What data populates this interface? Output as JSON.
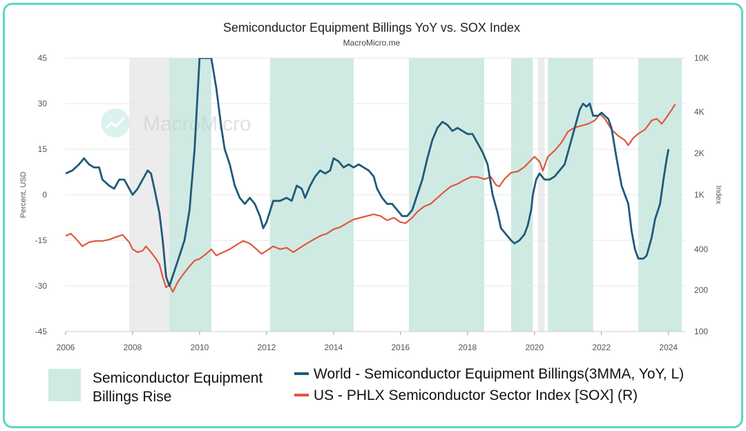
{
  "colors": {
    "rise_band": "#cfeae3",
    "gray_band": "#ececec",
    "world": "#1f5a7a",
    "us": "#e0563c",
    "frame": "#5ed6c2",
    "grid": "#e6e6e6"
  },
  "watermark": {
    "text": "MacroMicro",
    "icon": "chart-logo-icon"
  },
  "chart_data": {
    "type": "line",
    "title": "Semiconductor Equipment Billings YoY vs. SOX Index",
    "subtitle": "MacroMicro.me",
    "ylabel_left": "Percent, USD",
    "ylabel_right": "Index",
    "x_range": [
      2006.0,
      2024.5
    ],
    "y_left_range": [
      -45,
      45
    ],
    "y_right_range": [
      100,
      10000
    ],
    "y_right_scale": "log",
    "x_ticks": [
      "2006",
      "2008",
      "2010",
      "2012",
      "2014",
      "2016",
      "2018",
      "2020",
      "2022",
      "2024"
    ],
    "y_left_ticks": [
      "45",
      "30",
      "15",
      "0",
      "-15",
      "-30",
      "-45"
    ],
    "y_right_ticks": [
      "10K",
      "4K",
      "2K",
      "1K",
      "400",
      "200",
      "100"
    ],
    "rise_periods": [
      [
        2009.1,
        2010.35
      ],
      [
        2012.1,
        2014.6
      ],
      [
        2016.25,
        2018.5
      ],
      [
        2019.3,
        2019.95
      ],
      [
        2020.4,
        2021.75
      ],
      [
        2023.1,
        2024.4
      ]
    ],
    "gray_periods": [
      [
        2007.9,
        2009.3
      ],
      [
        2020.1,
        2020.3
      ]
    ],
    "legend": {
      "band_label": "Semiconductor Equipment Billings Rise",
      "series_labels": [
        "World - Semiconductor Equipment Billings(3MMA, YoY, L)",
        "US - PHLX Semiconductor Sector Index [SOX] (R)"
      ]
    },
    "series": [
      {
        "name": "World - Semiconductor Equipment Billings(3MMA, YoY, L)",
        "axis": "left",
        "points": [
          [
            2006.0,
            7
          ],
          [
            2006.2,
            8
          ],
          [
            2006.4,
            10
          ],
          [
            2006.55,
            12
          ],
          [
            2006.7,
            10
          ],
          [
            2006.85,
            9
          ],
          [
            2007.0,
            9
          ],
          [
            2007.1,
            5
          ],
          [
            2007.3,
            3
          ],
          [
            2007.45,
            2
          ],
          [
            2007.6,
            5
          ],
          [
            2007.75,
            5
          ],
          [
            2007.9,
            2
          ],
          [
            2008.0,
            0
          ],
          [
            2008.15,
            2
          ],
          [
            2008.3,
            5
          ],
          [
            2008.45,
            8
          ],
          [
            2008.55,
            7
          ],
          [
            2008.65,
            2
          ],
          [
            2008.8,
            -6
          ],
          [
            2008.9,
            -15
          ],
          [
            2009.0,
            -27
          ],
          [
            2009.1,
            -30
          ],
          [
            2009.25,
            -25
          ],
          [
            2009.4,
            -20
          ],
          [
            2009.55,
            -15
          ],
          [
            2009.7,
            -5
          ],
          [
            2009.85,
            15
          ],
          [
            2009.95,
            35
          ],
          [
            2010.0,
            45
          ],
          [
            2010.35,
            45
          ],
          [
            2010.5,
            35
          ],
          [
            2010.65,
            22
          ],
          [
            2010.75,
            15
          ],
          [
            2010.9,
            10
          ],
          [
            2011.05,
            3
          ],
          [
            2011.2,
            -1
          ],
          [
            2011.35,
            -3
          ],
          [
            2011.5,
            -1
          ],
          [
            2011.65,
            -3
          ],
          [
            2011.8,
            -7
          ],
          [
            2011.9,
            -11
          ],
          [
            2012.0,
            -9
          ],
          [
            2012.2,
            -2
          ],
          [
            2012.4,
            -2
          ],
          [
            2012.6,
            -1
          ],
          [
            2012.75,
            -2
          ],
          [
            2012.9,
            3
          ],
          [
            2013.05,
            2
          ],
          [
            2013.15,
            -1
          ],
          [
            2013.3,
            3
          ],
          [
            2013.45,
            6
          ],
          [
            2013.6,
            8
          ],
          [
            2013.75,
            7
          ],
          [
            2013.9,
            8
          ],
          [
            2014.0,
            12
          ],
          [
            2014.15,
            11
          ],
          [
            2014.3,
            9
          ],
          [
            2014.45,
            10
          ],
          [
            2014.6,
            9
          ],
          [
            2014.75,
            10
          ],
          [
            2014.9,
            9
          ],
          [
            2015.05,
            8
          ],
          [
            2015.2,
            6
          ],
          [
            2015.3,
            2
          ],
          [
            2015.45,
            -1
          ],
          [
            2015.6,
            -3
          ],
          [
            2015.75,
            -3
          ],
          [
            2015.9,
            -5
          ],
          [
            2016.05,
            -7
          ],
          [
            2016.2,
            -7
          ],
          [
            2016.35,
            -5
          ],
          [
            2016.5,
            0
          ],
          [
            2016.65,
            5
          ],
          [
            2016.8,
            12
          ],
          [
            2016.95,
            18
          ],
          [
            2017.1,
            22
          ],
          [
            2017.25,
            24
          ],
          [
            2017.4,
            23
          ],
          [
            2017.55,
            21
          ],
          [
            2017.7,
            22
          ],
          [
            2017.85,
            21
          ],
          [
            2018.0,
            20
          ],
          [
            2018.15,
            20
          ],
          [
            2018.3,
            17
          ],
          [
            2018.45,
            14
          ],
          [
            2018.6,
            10
          ],
          [
            2018.75,
            0
          ],
          [
            2018.9,
            -6
          ],
          [
            2019.0,
            -11
          ],
          [
            2019.15,
            -13
          ],
          [
            2019.3,
            -15
          ],
          [
            2019.4,
            -16
          ],
          [
            2019.55,
            -15
          ],
          [
            2019.7,
            -13
          ],
          [
            2019.8,
            -10
          ],
          [
            2019.9,
            -5
          ],
          [
            2019.95,
            0
          ],
          [
            2020.05,
            5
          ],
          [
            2020.15,
            7
          ],
          [
            2020.3,
            5
          ],
          [
            2020.45,
            5
          ],
          [
            2020.6,
            6
          ],
          [
            2020.75,
            8
          ],
          [
            2020.9,
            10
          ],
          [
            2021.05,
            16
          ],
          [
            2021.2,
            22
          ],
          [
            2021.35,
            28
          ],
          [
            2021.45,
            30
          ],
          [
            2021.55,
            29
          ],
          [
            2021.65,
            30
          ],
          [
            2021.75,
            26
          ],
          [
            2021.9,
            26
          ],
          [
            2022.0,
            27
          ],
          [
            2022.1,
            26
          ],
          [
            2022.2,
            25
          ],
          [
            2022.3,
            22
          ],
          [
            2022.45,
            12
          ],
          [
            2022.6,
            3
          ],
          [
            2022.7,
            0
          ],
          [
            2022.8,
            -3
          ],
          [
            2022.9,
            -12
          ],
          [
            2023.0,
            -18
          ],
          [
            2023.1,
            -21
          ],
          [
            2023.25,
            -21
          ],
          [
            2023.35,
            -20
          ],
          [
            2023.5,
            -14
          ],
          [
            2023.6,
            -8
          ],
          [
            2023.75,
            -3
          ],
          [
            2023.85,
            5
          ],
          [
            2023.95,
            12
          ],
          [
            2024.0,
            15
          ]
        ]
      },
      {
        "name": "US - PHLX Semiconductor Sector Index [SOX] (R)",
        "axis": "right",
        "points": [
          [
            2006.0,
            500
          ],
          [
            2006.15,
            520
          ],
          [
            2006.3,
            480
          ],
          [
            2006.5,
            420
          ],
          [
            2006.7,
            450
          ],
          [
            2006.9,
            460
          ],
          [
            2007.1,
            460
          ],
          [
            2007.3,
            470
          ],
          [
            2007.5,
            490
          ],
          [
            2007.7,
            510
          ],
          [
            2007.9,
            450
          ],
          [
            2008.0,
            400
          ],
          [
            2008.15,
            380
          ],
          [
            2008.3,
            390
          ],
          [
            2008.4,
            420
          ],
          [
            2008.55,
            380
          ],
          [
            2008.7,
            340
          ],
          [
            2008.8,
            310
          ],
          [
            2008.9,
            250
          ],
          [
            2009.0,
            210
          ],
          [
            2009.1,
            220
          ],
          [
            2009.2,
            195
          ],
          [
            2009.35,
            230
          ],
          [
            2009.5,
            260
          ],
          [
            2009.7,
            300
          ],
          [
            2009.85,
            330
          ],
          [
            2010.0,
            340
          ],
          [
            2010.2,
            370
          ],
          [
            2010.35,
            400
          ],
          [
            2010.5,
            360
          ],
          [
            2010.7,
            380
          ],
          [
            2010.9,
            400
          ],
          [
            2011.1,
            430
          ],
          [
            2011.3,
            460
          ],
          [
            2011.5,
            440
          ],
          [
            2011.7,
            400
          ],
          [
            2011.85,
            370
          ],
          [
            2012.0,
            390
          ],
          [
            2012.2,
            420
          ],
          [
            2012.4,
            400
          ],
          [
            2012.6,
            410
          ],
          [
            2012.8,
            380
          ],
          [
            2013.0,
            410
          ],
          [
            2013.2,
            440
          ],
          [
            2013.4,
            470
          ],
          [
            2013.6,
            500
          ],
          [
            2013.8,
            520
          ],
          [
            2014.0,
            560
          ],
          [
            2014.2,
            580
          ],
          [
            2014.4,
            620
          ],
          [
            2014.6,
            660
          ],
          [
            2014.8,
            680
          ],
          [
            2015.0,
            700
          ],
          [
            2015.2,
            720
          ],
          [
            2015.4,
            700
          ],
          [
            2015.6,
            650
          ],
          [
            2015.8,
            680
          ],
          [
            2016.0,
            630
          ],
          [
            2016.15,
            620
          ],
          [
            2016.35,
            680
          ],
          [
            2016.5,
            750
          ],
          [
            2016.7,
            820
          ],
          [
            2016.9,
            860
          ],
          [
            2017.1,
            950
          ],
          [
            2017.3,
            1050
          ],
          [
            2017.5,
            1150
          ],
          [
            2017.7,
            1200
          ],
          [
            2017.9,
            1280
          ],
          [
            2018.1,
            1350
          ],
          [
            2018.3,
            1350
          ],
          [
            2018.5,
            1300
          ],
          [
            2018.7,
            1350
          ],
          [
            2018.85,
            1180
          ],
          [
            2018.95,
            1150
          ],
          [
            2019.1,
            1300
          ],
          [
            2019.3,
            1450
          ],
          [
            2019.5,
            1480
          ],
          [
            2019.7,
            1600
          ],
          [
            2019.9,
            1800
          ],
          [
            2020.0,
            1900
          ],
          [
            2020.15,
            1750
          ],
          [
            2020.25,
            1500
          ],
          [
            2020.4,
            1900
          ],
          [
            2020.6,
            2100
          ],
          [
            2020.8,
            2400
          ],
          [
            2021.0,
            2900
          ],
          [
            2021.2,
            3100
          ],
          [
            2021.4,
            3200
          ],
          [
            2021.6,
            3300
          ],
          [
            2021.8,
            3500
          ],
          [
            2021.95,
            3900
          ],
          [
            2022.1,
            3600
          ],
          [
            2022.3,
            3000
          ],
          [
            2022.5,
            2700
          ],
          [
            2022.7,
            2500
          ],
          [
            2022.8,
            2300
          ],
          [
            2022.95,
            2600
          ],
          [
            2023.1,
            2800
          ],
          [
            2023.3,
            3000
          ],
          [
            2023.5,
            3500
          ],
          [
            2023.65,
            3600
          ],
          [
            2023.8,
            3300
          ],
          [
            2023.95,
            3700
          ],
          [
            2024.1,
            4200
          ],
          [
            2024.2,
            4600
          ]
        ]
      }
    ]
  }
}
